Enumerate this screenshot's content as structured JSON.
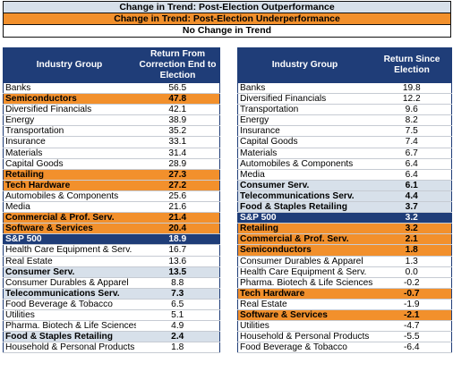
{
  "legend": {
    "outperformance": "Change in Trend: Post-Election Outperformance",
    "underperformance": "Change in Trend: Post-Election Underperformance",
    "no_change": "No Change in Trend"
  },
  "colors": {
    "outperformance": "#d7e0ea",
    "underperformance": "#f2902c",
    "header": "#1f3d78",
    "benchmark": "#1f3d78"
  },
  "left_table": {
    "headers": [
      "Industry Group",
      "Return From Correction End to Election"
    ],
    "rows": [
      {
        "name": "Banks",
        "value": "56.5",
        "trend": "none"
      },
      {
        "name": "Semiconductors",
        "value": "47.8",
        "trend": "under"
      },
      {
        "name": "Diversified Financials",
        "value": "42.1",
        "trend": "none"
      },
      {
        "name": "Energy",
        "value": "38.9",
        "trend": "none"
      },
      {
        "name": "Transportation",
        "value": "35.2",
        "trend": "none"
      },
      {
        "name": "Insurance",
        "value": "33.1",
        "trend": "none"
      },
      {
        "name": "Materials",
        "value": "31.4",
        "trend": "none"
      },
      {
        "name": "Capital Goods",
        "value": "28.9",
        "trend": "none"
      },
      {
        "name": "Retailing",
        "value": "27.3",
        "trend": "under"
      },
      {
        "name": "Tech Hardware",
        "value": "27.2",
        "trend": "under"
      },
      {
        "name": "Automobiles & Components",
        "value": "25.6",
        "trend": "none"
      },
      {
        "name": "Media",
        "value": "21.6",
        "trend": "none"
      },
      {
        "name": "Commercial & Prof. Serv.",
        "value": "21.4",
        "trend": "under"
      },
      {
        "name": "Software & Services",
        "value": "20.4",
        "trend": "under"
      },
      {
        "name": "S&P 500",
        "value": "18.9",
        "trend": "bench"
      },
      {
        "name": "Health Care Equipment & Serv.",
        "value": "16.7",
        "trend": "none"
      },
      {
        "name": "Real Estate",
        "value": "13.6",
        "trend": "none"
      },
      {
        "name": "Consumer Serv.",
        "value": "13.5",
        "trend": "out"
      },
      {
        "name": "Consumer Durables & Apparel",
        "value": "8.8",
        "trend": "none"
      },
      {
        "name": "Telecommunications Serv.",
        "value": "7.3",
        "trend": "out"
      },
      {
        "name": "Food Beverage & Tobacco",
        "value": "6.5",
        "trend": "none"
      },
      {
        "name": "Utilities",
        "value": "5.1",
        "trend": "none"
      },
      {
        "name": "Pharma. Biotech & Life Sciences",
        "value": "4.9",
        "trend": "none"
      },
      {
        "name": "Food & Staples Retailing",
        "value": "2.4",
        "trend": "out"
      },
      {
        "name": "Household & Personal Products",
        "value": "1.8",
        "trend": "none"
      }
    ]
  },
  "right_table": {
    "headers": [
      "Industry Group",
      "Return Since Election"
    ],
    "rows": [
      {
        "name": "Banks",
        "value": "19.8",
        "trend": "none"
      },
      {
        "name": "Diversified Financials",
        "value": "12.2",
        "trend": "none"
      },
      {
        "name": "Transportation",
        "value": "9.6",
        "trend": "none"
      },
      {
        "name": "Energy",
        "value": "8.2",
        "trend": "none"
      },
      {
        "name": "Insurance",
        "value": "7.5",
        "trend": "none"
      },
      {
        "name": "Capital Goods",
        "value": "7.4",
        "trend": "none"
      },
      {
        "name": "Materials",
        "value": "6.7",
        "trend": "none"
      },
      {
        "name": "Automobiles & Components",
        "value": "6.4",
        "trend": "none"
      },
      {
        "name": "Media",
        "value": "6.4",
        "trend": "none"
      },
      {
        "name": "Consumer Serv.",
        "value": "6.1",
        "trend": "out"
      },
      {
        "name": "Telecommunications Serv.",
        "value": "4.4",
        "trend": "out"
      },
      {
        "name": "Food & Staples Retailing",
        "value": "3.7",
        "trend": "out"
      },
      {
        "name": "S&P 500",
        "value": "3.2",
        "trend": "bench"
      },
      {
        "name": "Retailing",
        "value": "3.2",
        "trend": "under"
      },
      {
        "name": "Commercial & Prof. Serv.",
        "value": "2.1",
        "trend": "under"
      },
      {
        "name": "Semiconductors",
        "value": "1.8",
        "trend": "under"
      },
      {
        "name": "Consumer Durables & Apparel",
        "value": "1.3",
        "trend": "none"
      },
      {
        "name": "Health Care Equipment & Serv.",
        "value": "0.0",
        "trend": "none"
      },
      {
        "name": "Pharma. Biotech & Life Sciences",
        "value": "-0.2",
        "trend": "none"
      },
      {
        "name": "Tech Hardware",
        "value": "-0.7",
        "trend": "under"
      },
      {
        "name": "Real Estate",
        "value": "-1.9",
        "trend": "none"
      },
      {
        "name": "Software & Services",
        "value": "-2.1",
        "trend": "under"
      },
      {
        "name": "Utilities",
        "value": "-4.7",
        "trend": "none"
      },
      {
        "name": "Household & Personal Products",
        "value": "-5.5",
        "trend": "none"
      },
      {
        "name": "Food Beverage & Tobacco",
        "value": "-6.4",
        "trend": "none"
      }
    ]
  }
}
